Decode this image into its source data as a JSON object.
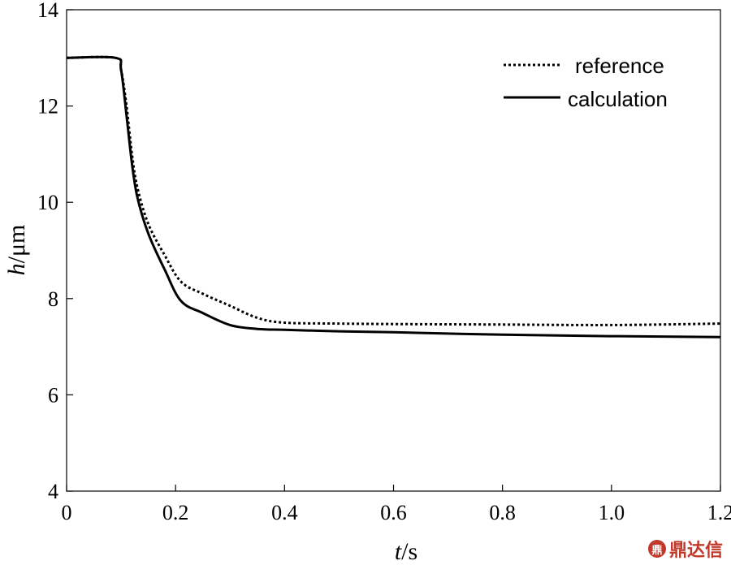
{
  "chart_data": {
    "type": "line",
    "xlabel": {
      "var": "t",
      "unit": "/s"
    },
    "ylabel": {
      "var": "h",
      "unit": "/μm"
    },
    "xlim": [
      0,
      1.2
    ],
    "ylim": [
      4,
      14
    ],
    "xticks": [
      "0",
      "0.2",
      "0.4",
      "0.6",
      "0.8",
      "1.0",
      "1.2"
    ],
    "yticks": [
      "4",
      "6",
      "8",
      "10",
      "12",
      "14"
    ],
    "legend_position": "top-right",
    "grid": false,
    "series": [
      {
        "name": "reference",
        "style": "dotted",
        "color": "#000000",
        "x": [
          0,
          0.09,
          0.1,
          0.11,
          0.12,
          0.13,
          0.15,
          0.18,
          0.21,
          0.25,
          0.3,
          0.35,
          0.4,
          0.5,
          0.6,
          0.8,
          1.0,
          1.2
        ],
        "y": [
          13.0,
          13.0,
          12.75,
          12.0,
          11.0,
          10.3,
          9.55,
          8.9,
          8.35,
          8.1,
          7.85,
          7.6,
          7.5,
          7.48,
          7.47,
          7.46,
          7.45,
          7.48
        ]
      },
      {
        "name": "calculation",
        "style": "solid",
        "color": "#000000",
        "x": [
          0,
          0.09,
          0.1,
          0.11,
          0.12,
          0.13,
          0.15,
          0.18,
          0.21,
          0.25,
          0.3,
          0.35,
          0.4,
          0.5,
          0.6,
          0.8,
          1.0,
          1.2
        ],
        "y": [
          13.0,
          13.0,
          12.75,
          11.8,
          10.8,
          10.1,
          9.35,
          8.6,
          7.95,
          7.7,
          7.45,
          7.37,
          7.35,
          7.32,
          7.3,
          7.25,
          7.22,
          7.2
        ]
      }
    ]
  },
  "watermark": {
    "logo_glyph": "鼎",
    "text": "鼎达信"
  }
}
